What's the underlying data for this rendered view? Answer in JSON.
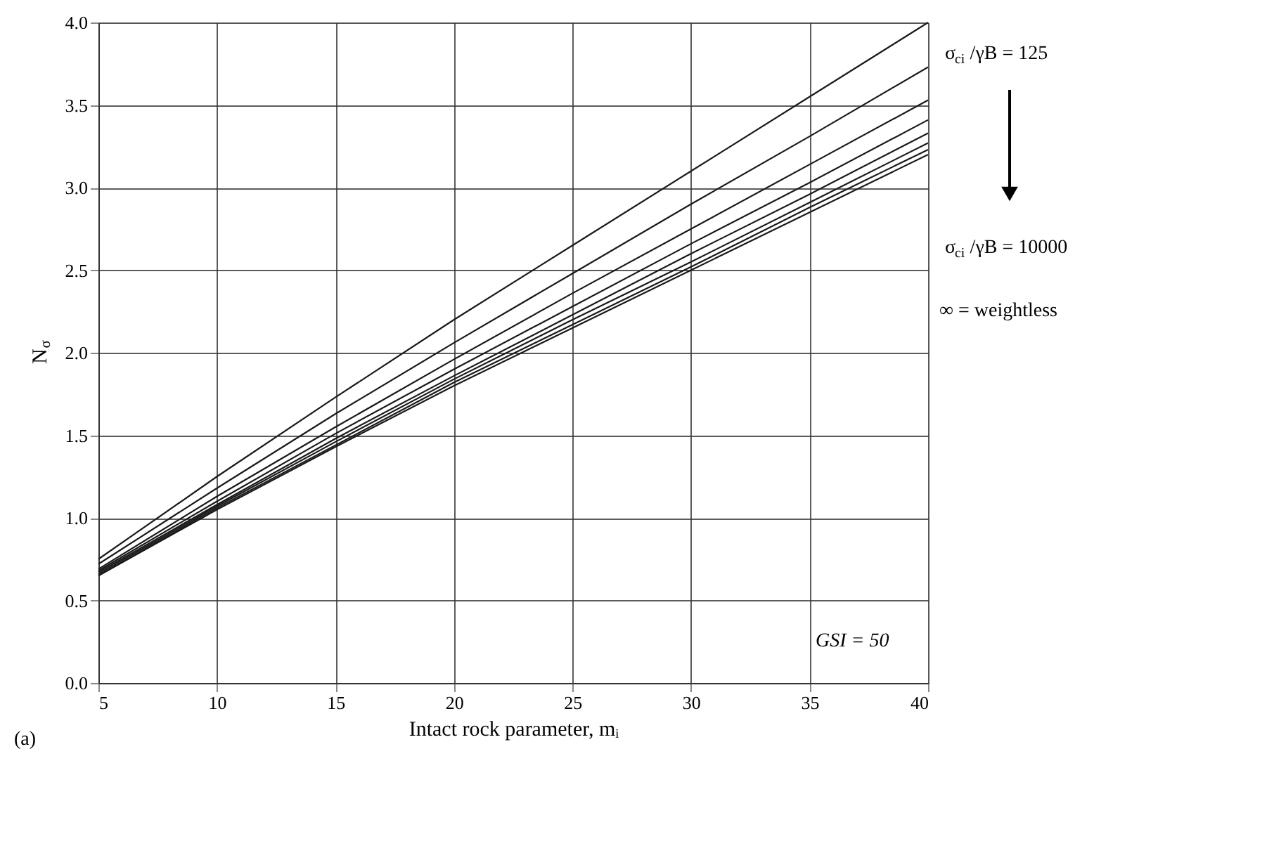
{
  "chart_data": {
    "type": "line",
    "xlabel": "Intact rock parameter, mᵢ",
    "ylabel": "N$_{σ}$",
    "x": [
      5,
      10,
      15,
      20,
      25,
      30,
      35,
      40
    ],
    "xlim": [
      5,
      40
    ],
    "xticks": [
      5,
      10,
      15,
      20,
      25,
      30,
      35,
      40
    ],
    "ylim": [
      0,
      4
    ],
    "yticks": [
      {
        "value": 0,
        "label": "0.0"
      },
      {
        "value": 0.5,
        "label": "0.5"
      },
      {
        "value": 1,
        "label": "1.0"
      },
      {
        "value": 1.5,
        "label": "1.5"
      },
      {
        "value": 2,
        "label": "2.0"
      },
      {
        "value": 2.5,
        "label": "2.5"
      },
      {
        "value": 3,
        "label": "3.0"
      },
      {
        "value": 3.5,
        "label": "3.5"
      },
      {
        "value": 4,
        "label": "4.0"
      }
    ],
    "grid": true,
    "legend": false,
    "marker": "none",
    "line_style": "solid",
    "series": [
      {
        "color": "#1a1a1a",
        "values": [
          0.75,
          1.25,
          1.73,
          2.2,
          2.65,
          3.1,
          3.55,
          4.0
        ]
      },
      {
        "color": "#1a1a1a",
        "values": [
          0.72,
          1.18,
          1.63,
          2.06,
          2.48,
          2.9,
          3.31,
          3.73
        ]
      },
      {
        "color": "#1a1a1a",
        "values": [
          0.69,
          1.13,
          1.55,
          1.96,
          2.36,
          2.75,
          3.14,
          3.53
        ]
      },
      {
        "color": "#1a1a1a",
        "values": [
          0.68,
          1.1,
          1.51,
          1.9,
          2.28,
          2.66,
          3.03,
          3.41
        ]
      },
      {
        "color": "#1a1a1a",
        "values": [
          0.67,
          1.08,
          1.48,
          1.86,
          2.23,
          2.6,
          2.96,
          3.33
        ]
      },
      {
        "color": "#1a1a1a",
        "values": [
          0.66,
          1.07,
          1.46,
          1.84,
          2.2,
          2.55,
          2.91,
          3.27
        ]
      },
      {
        "color": "#1a1a1a",
        "values": [
          0.65,
          1.06,
          1.44,
          1.82,
          2.17,
          2.52,
          2.88,
          3.23
        ]
      },
      {
        "color": "#1a1a1a",
        "values": [
          0.65,
          1.05,
          1.43,
          1.8,
          2.15,
          2.5,
          2.85,
          3.2
        ]
      }
    ],
    "annotations": [
      "σ$_{ci}$/γB = 125",
      "σ$_{ci}$/γB = 10000",
      "∞ = weightless",
      "GSI = 50",
      "(a)"
    ]
  }
}
